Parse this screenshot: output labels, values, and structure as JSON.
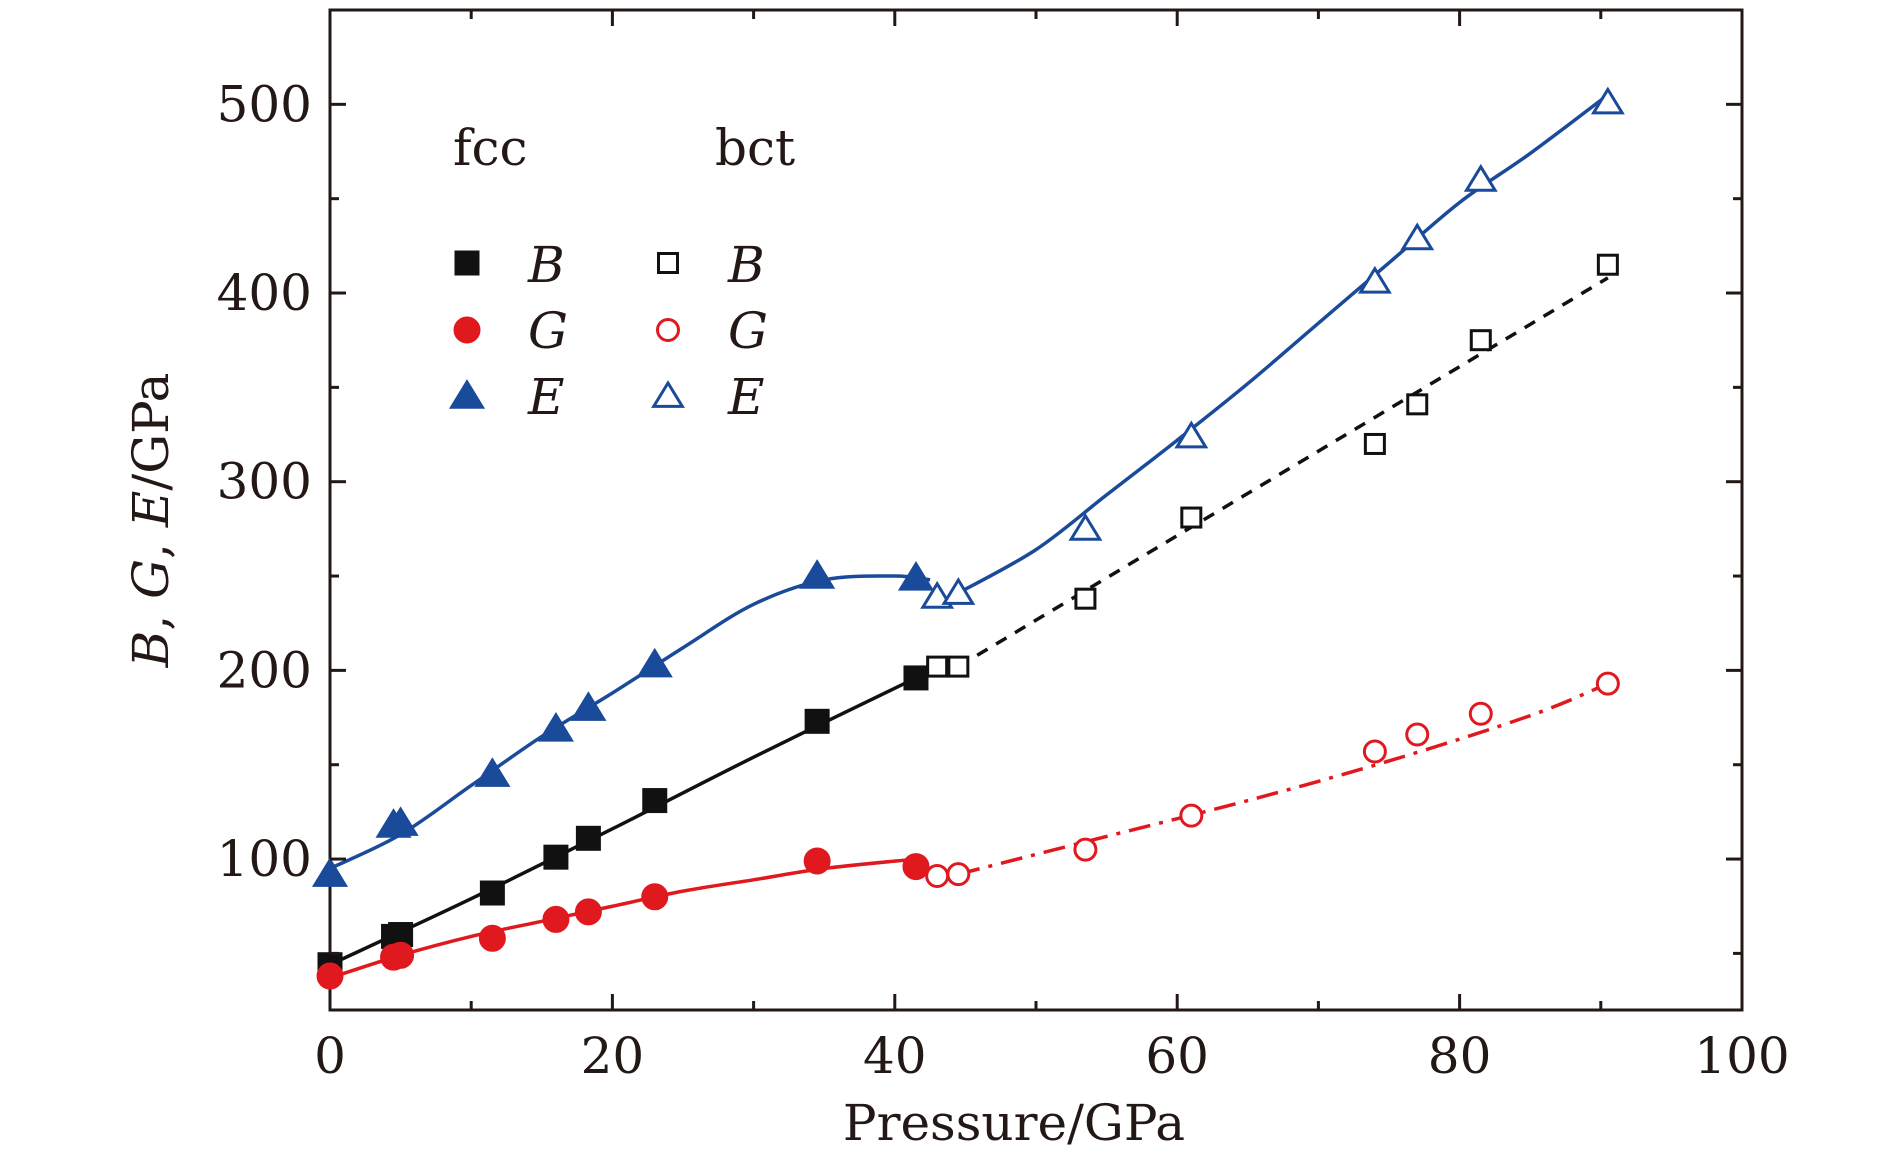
{
  "chart_data": {
    "type": "scatter",
    "xlabel": "Pressure/GPa",
    "ylabel_parts": [
      "B",
      ", ",
      "G",
      ", ",
      "E",
      "/GPa"
    ],
    "xlim": [
      0,
      100
    ],
    "ylim": [
      20,
      550
    ],
    "xticks": [
      0,
      20,
      40,
      60,
      80,
      100
    ],
    "yticks": [
      100,
      200,
      300,
      400,
      500
    ],
    "legend": {
      "headers": [
        "fcc",
        "bct"
      ],
      "entries": [
        {
          "phase": "fcc",
          "quantity": "B",
          "color": "#111111",
          "marker": "square",
          "filled": true
        },
        {
          "phase": "fcc",
          "quantity": "G",
          "color": "#e0191f",
          "marker": "circle",
          "filled": true
        },
        {
          "phase": "fcc",
          "quantity": "E",
          "color": "#1a4a9a",
          "marker": "triangle",
          "filled": true
        },
        {
          "phase": "bct",
          "quantity": "B",
          "color": "#111111",
          "marker": "square",
          "filled": false
        },
        {
          "phase": "bct",
          "quantity": "G",
          "color": "#e0191f",
          "marker": "circle",
          "filled": false
        },
        {
          "phase": "bct",
          "quantity": "E",
          "color": "#1a4a9a",
          "marker": "triangle",
          "filled": false
        }
      ]
    },
    "series": [
      {
        "name": "fcc B",
        "color": "#111111",
        "marker": "square",
        "filled": true,
        "x": [
          0,
          4.5,
          5,
          11.5,
          16,
          18.3,
          23,
          34.5,
          41.5
        ],
        "y": [
          44,
          59,
          60,
          82,
          101,
          111,
          131,
          173,
          196
        ]
      },
      {
        "name": "fcc G",
        "color": "#e0191f",
        "marker": "circle",
        "filled": true,
        "x": [
          0,
          4.5,
          5,
          11.5,
          16,
          18.3,
          23,
          34.5,
          41.5
        ],
        "y": [
          38,
          48,
          49,
          58,
          68,
          72,
          80,
          99,
          96
        ]
      },
      {
        "name": "fcc E",
        "color": "#1a4a9a",
        "marker": "triangle",
        "filled": true,
        "x": [
          0,
          4.5,
          5,
          11.5,
          16,
          18.3,
          23,
          34.5,
          41.5
        ],
        "y": [
          92,
          118,
          119,
          145,
          169,
          180,
          203,
          250,
          249
        ]
      },
      {
        "name": "bct B",
        "color": "#111111",
        "marker": "square",
        "filled": false,
        "x": [
          43,
          44.5,
          53.5,
          61,
          74,
          77,
          81.5,
          90.5
        ],
        "y": [
          202,
          202,
          238,
          281,
          320,
          341,
          375,
          415
        ]
      },
      {
        "name": "bct G",
        "color": "#e0191f",
        "marker": "circle",
        "filled": false,
        "x": [
          43,
          44.5,
          53.5,
          61,
          74,
          77,
          81.5,
          90.5
        ],
        "y": [
          91,
          92,
          105,
          123,
          157,
          166,
          177,
          193
        ]
      },
      {
        "name": "bct E",
        "color": "#1a4a9a",
        "marker": "triangle",
        "filled": false,
        "x": [
          43,
          44.5,
          53.5,
          61,
          74,
          77,
          81.5,
          90.5
        ],
        "y": [
          239,
          241,
          275,
          324,
          406,
          429,
          460,
          501
        ]
      }
    ],
    "fits": [
      {
        "name": "fcc B fit",
        "color": "#111111",
        "style": "solid",
        "x": [
          0,
          10,
          20,
          30,
          41.5
        ],
        "y": [
          44,
          79,
          116,
          154,
          196
        ]
      },
      {
        "name": "fcc G fit",
        "color": "#e0191f",
        "style": "solid",
        "x": [
          0,
          5,
          10,
          15,
          20,
          25,
          30,
          35,
          41.5
        ],
        "y": [
          37,
          49,
          59,
          67,
          75,
          83,
          89,
          95,
          100
        ]
      },
      {
        "name": "fcc E fit",
        "color": "#1a4a9a",
        "style": "solid",
        "x": [
          0,
          5,
          10,
          15,
          20,
          25,
          30,
          35,
          40,
          42.5
        ],
        "y": [
          95,
          113,
          139,
          165,
          188,
          212,
          235,
          248,
          250,
          248
        ]
      },
      {
        "name": "bct B fit",
        "color": "#111111",
        "style": "dashed",
        "x": [
          44.5,
          90.5
        ],
        "y": [
          202,
          408
        ]
      },
      {
        "name": "bct G fit",
        "color": "#e0191f",
        "style": "dashdot",
        "x": [
          44.5,
          55,
          65,
          75,
          85,
          90.5
        ],
        "y": [
          92,
          112,
          131,
          152,
          176,
          193
        ]
      },
      {
        "name": "bct E fit",
        "color": "#1a4a9a",
        "style": "solid",
        "x": [
          44.5,
          50,
          55,
          60,
          65,
          70,
          75,
          80,
          85,
          90.5
        ],
        "y": [
          241,
          264,
          293,
          322,
          352,
          384,
          416,
          448,
          474,
          505
        ]
      }
    ]
  }
}
